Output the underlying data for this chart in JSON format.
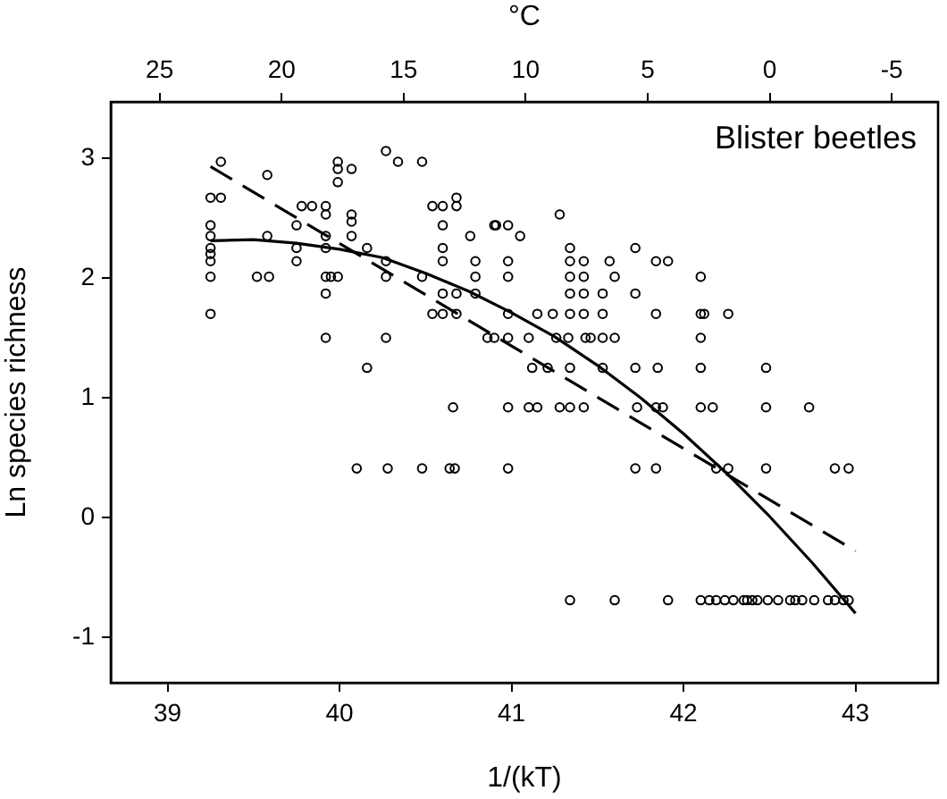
{
  "chart_data": {
    "type": "scatter",
    "xlabel": "1/(kT)",
    "ylabel": "Ln species richness",
    "x2label": "°C",
    "annotations": [
      "Blister beetles"
    ],
    "xlim": [
      38.67,
      43.48
    ],
    "xticks": [
      39,
      40,
      41,
      42,
      43
    ],
    "x2lim": [
      27,
      -6.9
    ],
    "x2ticks": [
      25,
      20,
      15,
      10,
      5,
      0,
      -5
    ],
    "ylim": [
      -1.38,
      3.47
    ],
    "yticks": [
      -1,
      0,
      1,
      2,
      3
    ],
    "grid": false,
    "legend": false,
    "series": [
      {
        "type": "scatter",
        "color": "#000000",
        "marker": "circle",
        "x": [
          39.25,
          39.25,
          39.25,
          39.25,
          39.25,
          39.25,
          39.25,
          39.25,
          39.31,
          39.31,
          39.58,
          39.58,
          39.52,
          39.59,
          39.75,
          39.75,
          39.75,
          39.78,
          39.84,
          39.92,
          39.92,
          39.92,
          39.92,
          39.92,
          39.92,
          39.92,
          39.95,
          39.99,
          39.99,
          39.99,
          39.99,
          40.07,
          40.07,
          40.07,
          40.07,
          40.16,
          40.16,
          40.27,
          40.27,
          40.27,
          40.27,
          40.34,
          40.48,
          40.48,
          40.54,
          40.54,
          40.6,
          40.6,
          40.6,
          40.6,
          40.6,
          40.6,
          40.68,
          40.68,
          40.68,
          40.68,
          40.66,
          40.76,
          40.79,
          40.79,
          40.79,
          40.9,
          40.86,
          40.9,
          40.91,
          40.98,
          41.05,
          41.28,
          40.98,
          40.98,
          40.98,
          41.15,
          41.24,
          41.34,
          41.34,
          41.42,
          41.34,
          41.42,
          41.34,
          41.42,
          41.53,
          41.34,
          41.42,
          41.53,
          41.57,
          41.6,
          41.72,
          41.72,
          41.84,
          41.91,
          41.84,
          42.1,
          42.1,
          42.12,
          42.26,
          40.98,
          41.1,
          41.26,
          41.33,
          41.43,
          41.46,
          41.53,
          41.6,
          42.1,
          41.12,
          41.21,
          41.34,
          41.53,
          41.72,
          41.85,
          42.1,
          42.48,
          40.98,
          41.1,
          41.15,
          41.28,
          41.34,
          41.42,
          41.73,
          41.84,
          41.88,
          42.1,
          42.17,
          42.48,
          42.73,
          40.1,
          40.28,
          40.48,
          40.64,
          40.67,
          40.98,
          41.72,
          41.84,
          42.19,
          42.26,
          42.48,
          42.88,
          42.96,
          41.34,
          41.6,
          41.91,
          42.1,
          42.15,
          42.19,
          42.24,
          42.29,
          42.35,
          42.37,
          42.4,
          42.43,
          42.49,
          42.55,
          42.62,
          42.65,
          42.69,
          42.76,
          42.84,
          42.88,
          42.93,
          42.96
        ],
        "values": [
          2.67,
          2.44,
          2.35,
          2.25,
          2.2,
          2.14,
          2.01,
          1.7,
          2.97,
          2.67,
          2.86,
          2.35,
          2.01,
          2.01,
          2.44,
          2.25,
          2.14,
          2.6,
          2.6,
          2.6,
          2.53,
          2.35,
          2.25,
          2.01,
          1.87,
          1.5,
          2.01,
          2.01,
          2.97,
          2.91,
          2.8,
          2.91,
          2.53,
          2.47,
          2.35,
          2.25,
          1.25,
          3.06,
          2.14,
          2.01,
          1.5,
          2.97,
          2.97,
          2.01,
          2.6,
          1.7,
          2.6,
          2.44,
          2.25,
          2.14,
          1.87,
          1.7,
          2.67,
          2.6,
          1.87,
          1.7,
          0.92,
          2.35,
          2.14,
          2.01,
          1.87,
          2.44,
          1.5,
          1.5,
          2.44,
          2.44,
          2.35,
          2.53,
          2.14,
          2.01,
          1.7,
          1.7,
          1.7,
          2.25,
          2.14,
          2.14,
          2.01,
          2.01,
          1.87,
          1.87,
          1.87,
          1.7,
          1.7,
          1.7,
          2.14,
          2.01,
          2.25,
          1.87,
          2.14,
          2.14,
          1.7,
          2.01,
          1.7,
          1.7,
          1.7,
          1.5,
          1.5,
          1.5,
          1.5,
          1.5,
          1.5,
          1.5,
          1.5,
          1.5,
          1.25,
          1.25,
          1.25,
          1.25,
          1.25,
          1.25,
          1.25,
          1.25,
          0.92,
          0.92,
          0.92,
          0.92,
          0.92,
          0.92,
          0.92,
          0.92,
          0.92,
          0.92,
          0.92,
          0.92,
          0.92,
          0.41,
          0.41,
          0.41,
          0.41,
          0.41,
          0.41,
          0.41,
          0.41,
          0.41,
          0.41,
          0.41,
          0.41,
          0.41,
          -0.69,
          -0.69,
          -0.69,
          -0.69,
          -0.69,
          -0.69,
          -0.69,
          -0.69,
          -0.69,
          -0.69,
          -0.69,
          -0.69,
          -0.69,
          -0.69,
          -0.69,
          -0.69,
          -0.69,
          -0.69,
          -0.69,
          -0.69,
          -0.69,
          -0.69
        ]
      },
      {
        "type": "line",
        "color": "#000000",
        "marker": "none",
        "line_style": "solid",
        "x": [
          39.25,
          39.5,
          39.75,
          40.0,
          40.25,
          40.5,
          40.75,
          41.0,
          41.25,
          41.5,
          41.75,
          42.0,
          42.25,
          42.5,
          42.75,
          43.0
        ],
        "values": [
          2.31,
          2.32,
          2.29,
          2.24,
          2.17,
          2.04,
          1.89,
          1.71,
          1.51,
          1.27,
          1.0,
          0.7,
          0.37,
          0.01,
          -0.38,
          -0.8
        ]
      },
      {
        "type": "line",
        "color": "#000000",
        "marker": "none",
        "line_style": "dashed",
        "x": [
          39.25,
          43.0
        ],
        "values": [
          2.93,
          -0.28
        ]
      }
    ]
  }
}
